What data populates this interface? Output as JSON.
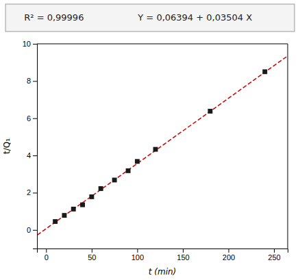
{
  "chart_data": {
    "type": "scatter",
    "annotations": [
      "R² = 0,99996",
      "Y = 0,06394 + 0,03504 X"
    ],
    "xlabel": "t (min)",
    "ylabel": "t/Q₁",
    "xlim": [
      -10,
      265
    ],
    "ylim": [
      -1,
      10
    ],
    "xticks": [
      0,
      50,
      100,
      150,
      200,
      250
    ],
    "yticks": [
      0,
      2,
      4,
      6,
      8,
      10
    ],
    "grid": false,
    "series": [
      {
        "type": "line",
        "line_style": "dashed",
        "color": "#cc0000",
        "x": [
          -15,
          265
        ],
        "values": [
          -0.46166,
          9.34954
        ]
      },
      {
        "type": "scatter",
        "marker": "square",
        "color": "#1a1a1a",
        "x": [
          10,
          20,
          30,
          40,
          50,
          60,
          75,
          90,
          100,
          120,
          180,
          240
        ],
        "values": [
          0.45,
          0.78,
          1.12,
          1.35,
          1.78,
          2.22,
          2.68,
          3.18,
          3.68,
          4.33,
          6.38,
          8.5
        ]
      }
    ]
  }
}
